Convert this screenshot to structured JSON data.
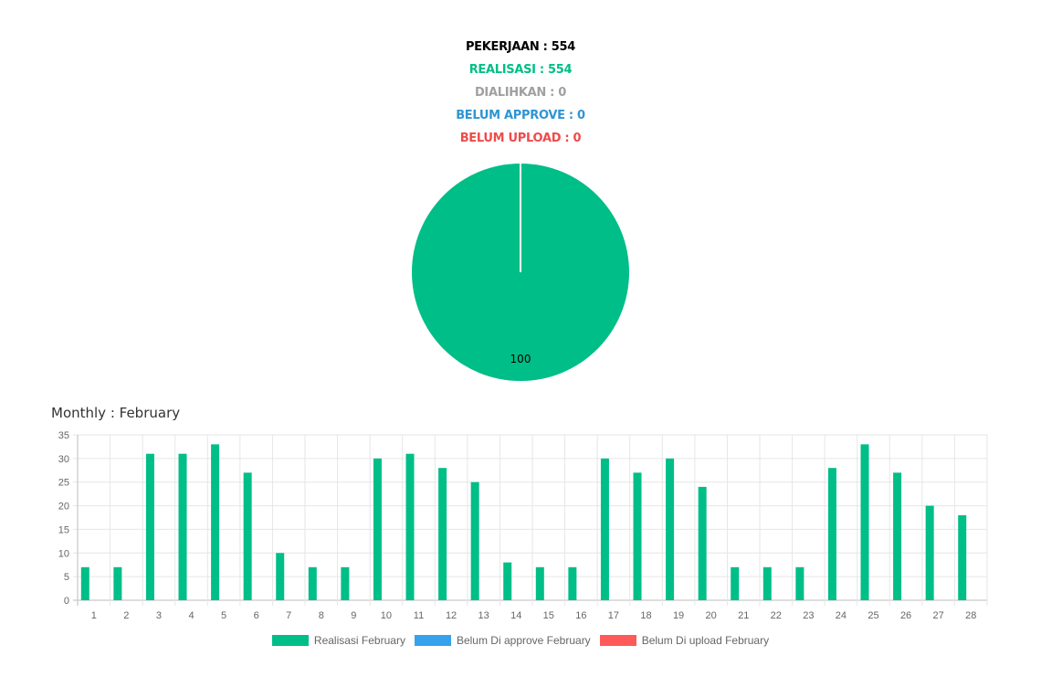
{
  "stats": {
    "pekerjaan": "PEKERJAAN : 554",
    "realisasi": "REALISASI : 554",
    "dialihkan": "DIALIHKAN : 0",
    "belum_approve": "BELUM APPROVE : 0",
    "belum_upload": "BELUM UPLOAD : 0"
  },
  "colors": {
    "pekerjaan": "#000000",
    "realisasi": "#00be87",
    "dialihkan": "#a0a0a0",
    "belum_approve": "#2e95d3",
    "belum_upload": "#ef4b4b"
  },
  "monthly_title": "Monthly : February",
  "legend": [
    {
      "label": "Realisasi February",
      "color": "#00be87"
    },
    {
      "label": "Belum Di approve February",
      "color": "#36a2eb"
    },
    {
      "label": "Belum Di upload February",
      "color": "#ff5a5a"
    }
  ],
  "chart_data": [
    {
      "type": "pie",
      "slices": [
        {
          "value": 100,
          "label": "100",
          "color": "#00be87"
        },
        {
          "value": 0,
          "label": "",
          "color": "#36a2eb"
        },
        {
          "value": 0,
          "label": "",
          "color": "#ff5a5a"
        }
      ]
    },
    {
      "type": "bar",
      "title": "Monthly : February",
      "categories": [
        "1",
        "2",
        "3",
        "4",
        "5",
        "6",
        "7",
        "8",
        "9",
        "10",
        "11",
        "12",
        "13",
        "14",
        "15",
        "16",
        "17",
        "18",
        "19",
        "20",
        "21",
        "22",
        "23",
        "24",
        "25",
        "26",
        "27",
        "28"
      ],
      "series": [
        {
          "name": "Realisasi February",
          "color": "#00be87",
          "values": [
            7,
            7,
            31,
            31,
            33,
            27,
            10,
            7,
            7,
            30,
            31,
            28,
            25,
            8,
            7,
            7,
            30,
            27,
            30,
            24,
            7,
            7,
            7,
            28,
            33,
            27,
            20,
            18
          ]
        },
        {
          "name": "Belum Di approve February",
          "color": "#36a2eb",
          "values": [
            0,
            0,
            0,
            0,
            0,
            0,
            0,
            0,
            0,
            0,
            0,
            0,
            0,
            0,
            0,
            0,
            0,
            0,
            0,
            0,
            0,
            0,
            0,
            0,
            0,
            0,
            0,
            0
          ]
        },
        {
          "name": "Belum Di upload February",
          "color": "#ff5a5a",
          "values": [
            0,
            0,
            0,
            0,
            0,
            0,
            0,
            0,
            0,
            0,
            0,
            0,
            0,
            0,
            0,
            0,
            0,
            0,
            0,
            0,
            0,
            0,
            0,
            0,
            0,
            0,
            0,
            0
          ]
        }
      ],
      "yticks": [
        "0",
        "5",
        "10",
        "15",
        "20",
        "25",
        "30",
        "35"
      ],
      "ylim": [
        0,
        35
      ],
      "grid": true,
      "legend_position": "bottom"
    }
  ]
}
